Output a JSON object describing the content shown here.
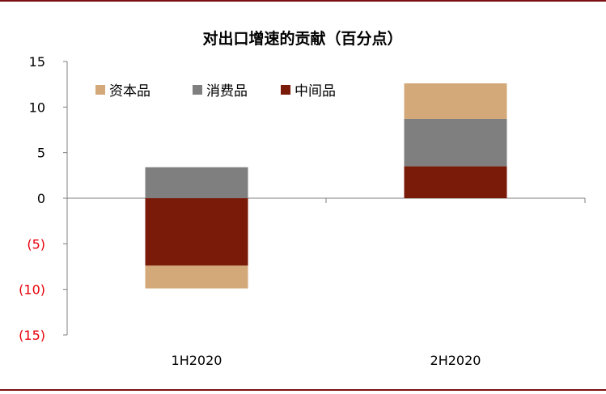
{
  "chart_data": {
    "type": "bar",
    "stacked": true,
    "title": "对出口增速的贡献（百分点）",
    "categories": [
      "1H2020",
      "2H2020"
    ],
    "series": [
      {
        "name": "资本品",
        "values": [
          -2.5,
          3.9
        ],
        "color": "#d4a97a"
      },
      {
        "name": "消费品",
        "values": [
          3.4,
          5.2
        ],
        "color": "#7f7f7f"
      },
      {
        "name": "中间品",
        "values": [
          -7.4,
          3.5
        ],
        "color": "#7a1a08"
      }
    ],
    "ylim": [
      -15,
      15
    ],
    "yticks": [
      15,
      10,
      5,
      0,
      -5,
      -10,
      -15
    ],
    "ytick_labels": [
      "15",
      "10",
      "5",
      "0",
      "(5)",
      "(10)",
      "(15)"
    ],
    "negative_tick_color": "#e8000b",
    "grid": false,
    "legend_position": "top-left",
    "xlabel": "",
    "ylabel": ""
  }
}
